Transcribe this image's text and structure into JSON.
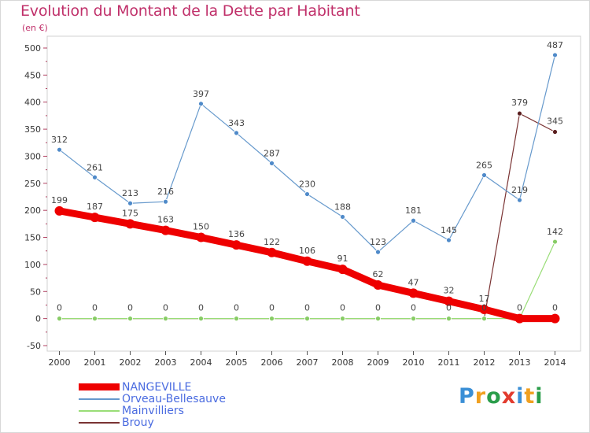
{
  "title": "Evolution du Montant de la Dette par Habitant",
  "subtitle": "(en €)",
  "logo_text": "Proxiti",
  "chart_data": {
    "type": "line",
    "x": [
      2000,
      2001,
      2002,
      2003,
      2004,
      2005,
      2006,
      2007,
      2008,
      2009,
      2010,
      2011,
      2012,
      2013,
      2014
    ],
    "ylim": [
      -50,
      500
    ],
    "yticks": [
      -50,
      0,
      50,
      100,
      150,
      200,
      250,
      300,
      350,
      400,
      450,
      500
    ],
    "grid": false,
    "legend_position": "bottom-left",
    "series": [
      {
        "name": "NANGEVILLE",
        "color": "#ee0000",
        "values": [
          199,
          187,
          175,
          163,
          150,
          136,
          122,
          106,
          91,
          62,
          47,
          32,
          17,
          0,
          0
        ],
        "labels": [
          "199",
          "187",
          "175",
          "163",
          "150",
          "136",
          "122",
          "106",
          "91",
          "62",
          "47",
          "32",
          "17",
          "0",
          "0"
        ]
      },
      {
        "name": "Orveau-Bellesauve",
        "color": "#6699cc",
        "values": [
          312,
          261,
          213,
          216,
          397,
          343,
          287,
          230,
          188,
          123,
          181,
          145,
          265,
          219,
          487
        ],
        "labels": [
          "312",
          "261",
          "213",
          "216",
          "397",
          "343",
          "287",
          "230",
          "188",
          "123",
          "181",
          "145",
          "265",
          "219",
          "487"
        ]
      },
      {
        "name": "Mainvilliers",
        "color": "#99dd77",
        "values": [
          0,
          0,
          0,
          0,
          0,
          0,
          0,
          0,
          0,
          0,
          0,
          0,
          0,
          0,
          142
        ],
        "labels": [
          "",
          "",
          "",
          "",
          "",
          "",
          "",
          "",
          "",
          "",
          "",
          "",
          "",
          "",
          "142"
        ]
      },
      {
        "name": "Brouy",
        "color": "#7a3333",
        "values": [
          0,
          0,
          0,
          0,
          0,
          0,
          0,
          0,
          0,
          0,
          0,
          0,
          0,
          379,
          345
        ],
        "labels": [
          "0",
          "0",
          "0",
          "0",
          "0",
          "0",
          "0",
          "0",
          "0",
          "0",
          "0",
          "0",
          "0",
          "379",
          "345"
        ]
      }
    ]
  }
}
